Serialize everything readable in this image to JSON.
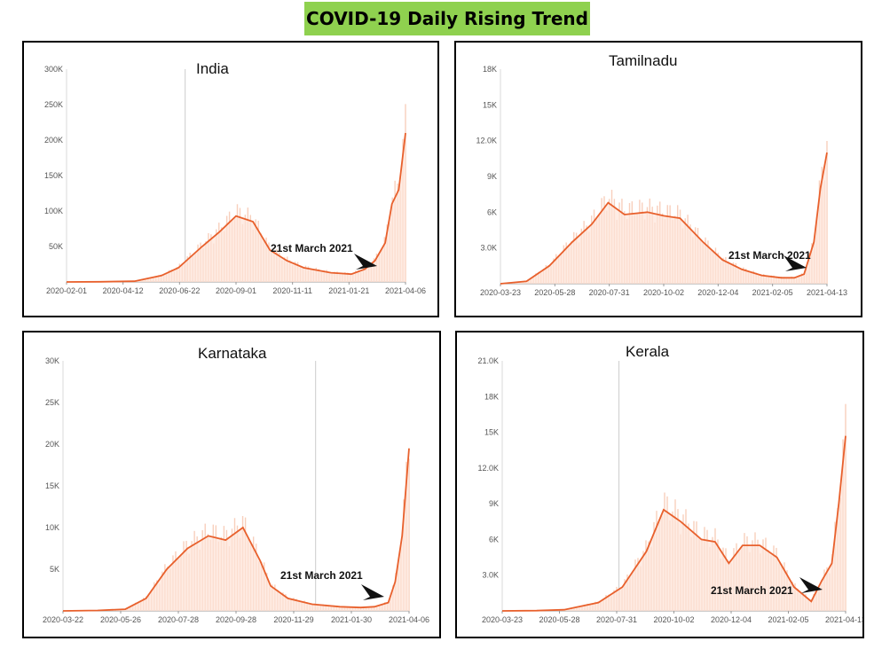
{
  "header": {
    "title": "COVID-19 Daily Rising Trend"
  },
  "colors": {
    "title_bg": "#8fd14f",
    "line": "#e8602c",
    "bar": "#f7c7b1",
    "area": "#fde4d8"
  },
  "chart_data": [
    {
      "type": "area",
      "title": "India",
      "annotation": "21st March 2021",
      "x_ticks": [
        "2020-02-01",
        "2020-04-12",
        "2020-06-22",
        "2020-09-01",
        "2020-11-11",
        "2021-01-21",
        "2021-04-06"
      ],
      "y_ticks": [
        "50K",
        "100K",
        "150K",
        "200K",
        "250K",
        "300K"
      ],
      "ylim": [
        0,
        300000
      ],
      "x": [
        0,
        0.1,
        0.2,
        0.28,
        0.33,
        0.4,
        0.45,
        0.5,
        0.55,
        0.6,
        0.65,
        0.7,
        0.78,
        0.84,
        0.88,
        0.91,
        0.94,
        0.96,
        0.98,
        1.0
      ],
      "values": [
        0,
        200,
        1000,
        9000,
        20000,
        50000,
        70000,
        93000,
        85000,
        45000,
        30000,
        20000,
        13000,
        11000,
        18000,
        30000,
        55000,
        110000,
        130000,
        210000
      ]
    },
    {
      "type": "area",
      "title": "Tamilnadu",
      "annotation": "21st March 2021",
      "x_ticks": [
        "2020-03-23",
        "2020-05-28",
        "2020-07-31",
        "2020-10-02",
        "2020-12-04",
        "2021-02-05",
        "2021-04-13"
      ],
      "y_ticks": [
        "3.0K",
        "6K",
        "9K",
        "12.0K",
        "15K",
        "18K"
      ],
      "ylim": [
        0,
        18000
      ],
      "x": [
        0,
        0.08,
        0.15,
        0.22,
        0.28,
        0.33,
        0.38,
        0.45,
        0.5,
        0.55,
        0.62,
        0.68,
        0.74,
        0.8,
        0.86,
        0.9,
        0.93,
        0.96,
        0.98,
        1.0
      ],
      "values": [
        0,
        200,
        1500,
        3500,
        5000,
        6800,
        5800,
        6000,
        5700,
        5500,
        3500,
        2000,
        1200,
        700,
        500,
        500,
        800,
        3500,
        8000,
        11000
      ]
    },
    {
      "type": "area",
      "title": "Karnataka",
      "annotation": "21st March 2021",
      "x_ticks": [
        "2020-03-22",
        "2020-05-26",
        "2020-07-28",
        "2020-09-28",
        "2020-11-29",
        "2021-01-30",
        "2021-04-06"
      ],
      "y_ticks": [
        "5K",
        "10K",
        "15K",
        "20K",
        "25K",
        "30K"
      ],
      "ylim": [
        0,
        30000
      ],
      "x": [
        0,
        0.1,
        0.18,
        0.24,
        0.3,
        0.36,
        0.42,
        0.47,
        0.52,
        0.57,
        0.6,
        0.65,
        0.72,
        0.8,
        0.86,
        0.9,
        0.94,
        0.96,
        0.98,
        1.0
      ],
      "values": [
        0,
        50,
        200,
        1500,
        5000,
        7500,
        9000,
        8500,
        10000,
        6000,
        3000,
        1500,
        800,
        500,
        400,
        500,
        1000,
        3500,
        9000,
        19500
      ]
    },
    {
      "type": "area",
      "title": "Kerala",
      "annotation": "21st March 2021",
      "x_ticks": [
        "2020-03-23",
        "2020-05-28",
        "2020-07-31",
        "2020-10-02",
        "2020-12-04",
        "2021-02-05",
        "2021-04-13"
      ],
      "y_ticks": [
        "3.0K",
        "6K",
        "9K",
        "12.0K",
        "15K",
        "18K",
        "21.0K"
      ],
      "ylim": [
        0,
        21000
      ],
      "x": [
        0,
        0.1,
        0.18,
        0.28,
        0.35,
        0.42,
        0.47,
        0.52,
        0.58,
        0.62,
        0.66,
        0.7,
        0.75,
        0.8,
        0.85,
        0.9,
        0.93,
        0.96,
        0.98,
        1.0
      ],
      "values": [
        0,
        20,
        100,
        700,
        2000,
        5000,
        8500,
        7500,
        6000,
        5800,
        4000,
        5500,
        5500,
        4500,
        2000,
        800,
        2500,
        4000,
        9000,
        14700
      ]
    }
  ]
}
